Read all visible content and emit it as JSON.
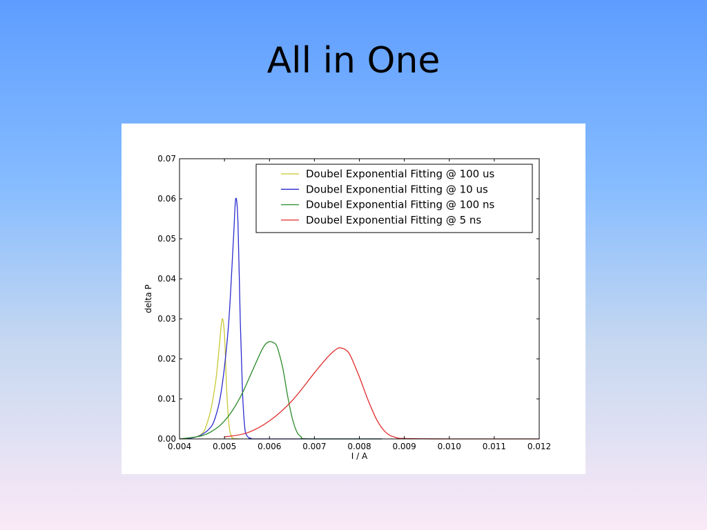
{
  "slide": {
    "title": "All in One"
  },
  "chart_data": {
    "type": "line",
    "title": "",
    "xlabel": "I / A",
    "ylabel": "delta P",
    "xlim": [
      0.004,
      0.012
    ],
    "ylim": [
      0.0,
      0.07
    ],
    "xticks": [
      "0.004",
      "0.005",
      "0.006",
      "0.007",
      "0.008",
      "0.009",
      "0.010",
      "0.011",
      "0.012"
    ],
    "yticks": [
      "0.00",
      "0.01",
      "0.02",
      "0.03",
      "0.04",
      "0.05",
      "0.06",
      "0.07"
    ],
    "grid": false,
    "legend_position": "top-right",
    "series": [
      {
        "name": "Doubel Exponential Fitting @ 100 us",
        "color": "#c8c832",
        "x": [
          0.004,
          0.0043,
          0.0045,
          0.0046,
          0.0047,
          0.0048,
          0.00485,
          0.0049,
          0.00495,
          0.005,
          0.00505,
          0.0051,
          0.00515,
          0.0052,
          0.0053
        ],
        "y": [
          0.0,
          0.0003,
          0.0013,
          0.0035,
          0.0075,
          0.014,
          0.019,
          0.025,
          0.03,
          0.026,
          0.012,
          0.0035,
          0.0008,
          0.0001,
          0.0
        ]
      },
      {
        "name": "Doubel Exponential Fitting @ 10 us",
        "color": "#2a2ad0",
        "x": [
          0.004,
          0.0043,
          0.0045,
          0.0047,
          0.0048,
          0.0049,
          0.005,
          0.0051,
          0.0052,
          0.00525,
          0.0053,
          0.00535,
          0.0054,
          0.00545,
          0.0055,
          0.0056,
          0.0058,
          0.0085
        ],
        "y": [
          0.0,
          0.0003,
          0.0011,
          0.003,
          0.0055,
          0.01,
          0.018,
          0.03,
          0.05,
          0.06,
          0.054,
          0.03,
          0.012,
          0.003,
          0.0008,
          0.0001,
          0.0,
          0.0
        ]
      },
      {
        "name": "Doubel Exponential Fitting @ 100 ns",
        "color": "#2a8a2a",
        "x": [
          0.004,
          0.0045,
          0.0048,
          0.005,
          0.0052,
          0.0054,
          0.0056,
          0.0058,
          0.0059,
          0.006,
          0.0061,
          0.00615,
          0.0062,
          0.0063,
          0.0064,
          0.0065,
          0.0066,
          0.0067,
          0.0069,
          0.0085
        ],
        "y": [
          0.0,
          0.0008,
          0.0025,
          0.0045,
          0.0075,
          0.0115,
          0.0165,
          0.0215,
          0.0235,
          0.0243,
          0.024,
          0.0235,
          0.022,
          0.0175,
          0.011,
          0.0055,
          0.002,
          0.0006,
          0.0,
          0.0
        ]
      },
      {
        "name": "Doubel Exponential Fitting @ 5 ns",
        "color": "#e02828",
        "x": [
          0.005,
          0.0055,
          0.006,
          0.0065,
          0.007,
          0.0073,
          0.0075,
          0.0076,
          0.0077,
          0.0078,
          0.008,
          0.0082,
          0.0084,
          0.0086,
          0.0088,
          0.009,
          0.01,
          0.012
        ],
        "y": [
          0.0005,
          0.0015,
          0.0045,
          0.0095,
          0.0165,
          0.0205,
          0.0225,
          0.0227,
          0.0222,
          0.0208,
          0.0155,
          0.0095,
          0.0045,
          0.0015,
          0.0004,
          0.0001,
          0.0,
          0.0
        ]
      }
    ]
  }
}
